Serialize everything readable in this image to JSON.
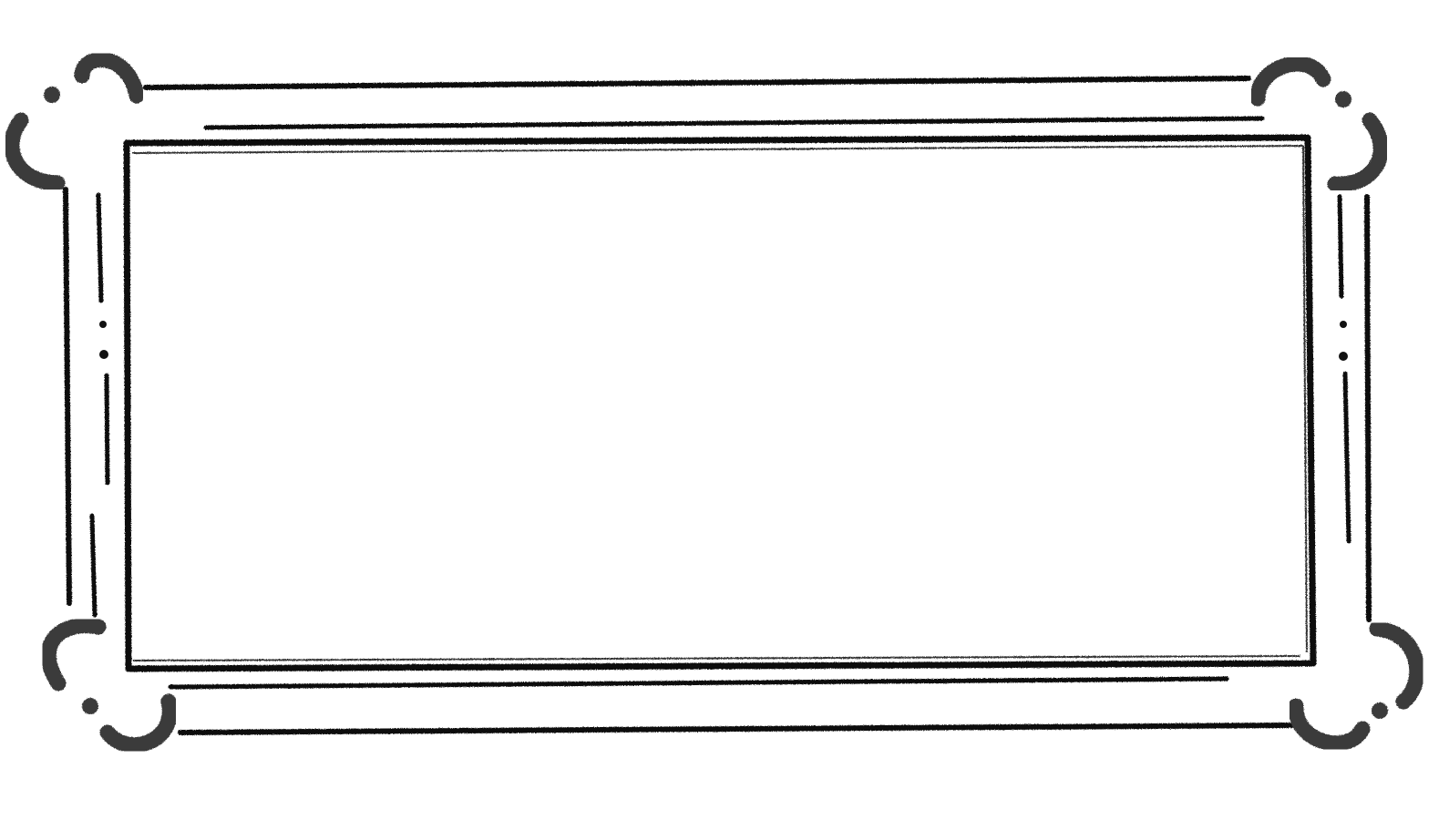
{
  "image": {
    "subject": "ornamental-rectangular-frame",
    "colors": {
      "background": "#ffffff",
      "ink": "#111111",
      "ornament": "#3a3a3a",
      "panel": "#ffffff"
    }
  },
  "frame": {
    "style": "hand-drawn",
    "corner_ornaments": [
      "top-left",
      "top-right",
      "bottom-left",
      "bottom-right"
    ],
    "center_panel": {
      "text": ""
    }
  }
}
